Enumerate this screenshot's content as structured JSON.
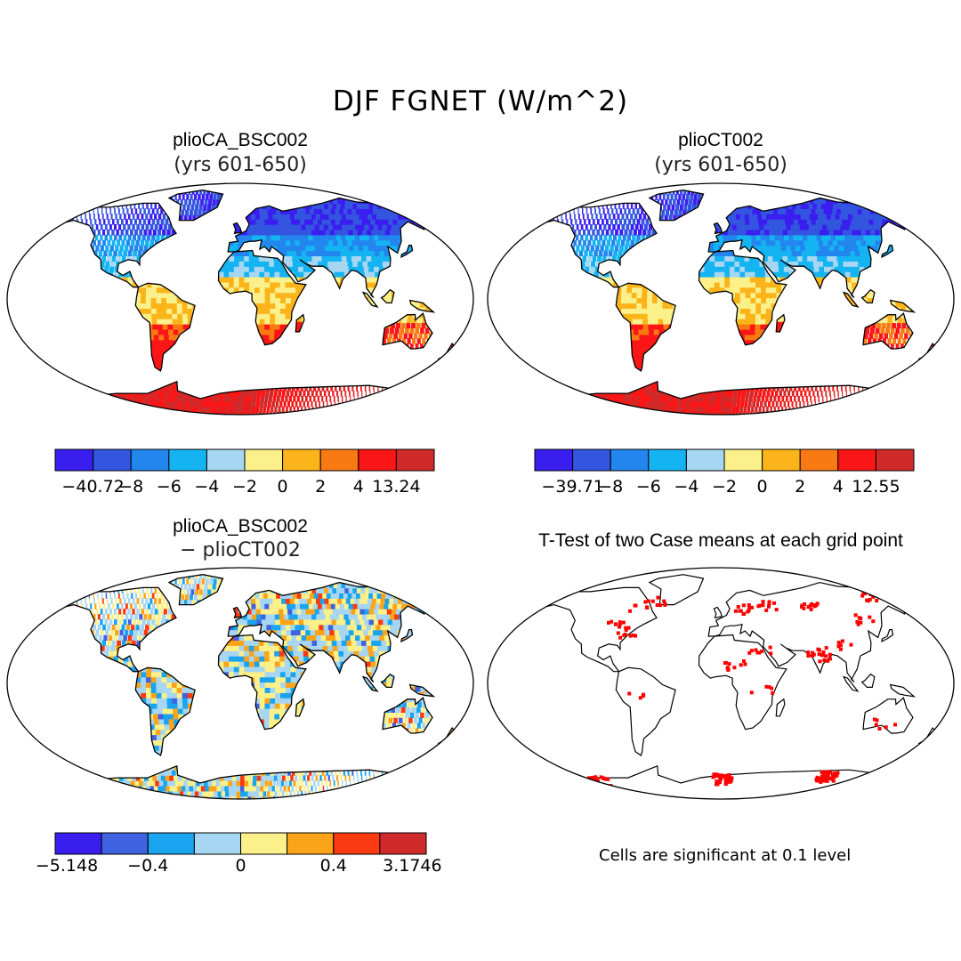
{
  "figure_title": "DJF FGNET (W/m^2)",
  "panels": [
    {
      "title": "plioCA_BSC002",
      "subtitle": "(yrs 601-650)",
      "colorbar": {
        "labels": [
          "−40.72",
          "−8",
          "−6",
          "−4",
          "−2",
          "0",
          "2",
          "4",
          "13.24"
        ],
        "colors": [
          "#3a1ef0",
          "#3355e0",
          "#2286ee",
          "#14b4f2",
          "#a6d6f2",
          "#fbf08a",
          "#fbb41a",
          "#f97a12",
          "#fa1616",
          "#d12a2a"
        ]
      }
    },
    {
      "title": "plioCT002",
      "subtitle": "(yrs 601-650)",
      "colorbar": {
        "labels": [
          "−39.71",
          "−8",
          "−6",
          "−4",
          "−2",
          "0",
          "2",
          "4",
          "12.55"
        ],
        "colors": [
          "#3a1ef0",
          "#3355e0",
          "#2286ee",
          "#14b4f2",
          "#a6d6f2",
          "#fbf08a",
          "#fbb41a",
          "#f97a12",
          "#fa1616",
          "#d12a2a"
        ]
      }
    },
    {
      "title": "plioCA_BSC002",
      "subtitle": "− plioCT002",
      "colorbar": {
        "labels": [
          "−5.148",
          "−0.4",
          "0",
          "0.4",
          "3.1746"
        ],
        "colors": [
          "#3a1ef0",
          "#3f62e0",
          "#1aa4ef",
          "#a6d6f2",
          "#fbf08a",
          "#fba41a",
          "#fa3a10",
          "#d12a2a"
        ]
      }
    },
    {
      "title": "T-Test of two Case means at each grid point",
      "subtitle": "",
      "note": "Cells are significant at 0.1 level",
      "significance_color": "#ff0000"
    }
  ]
}
